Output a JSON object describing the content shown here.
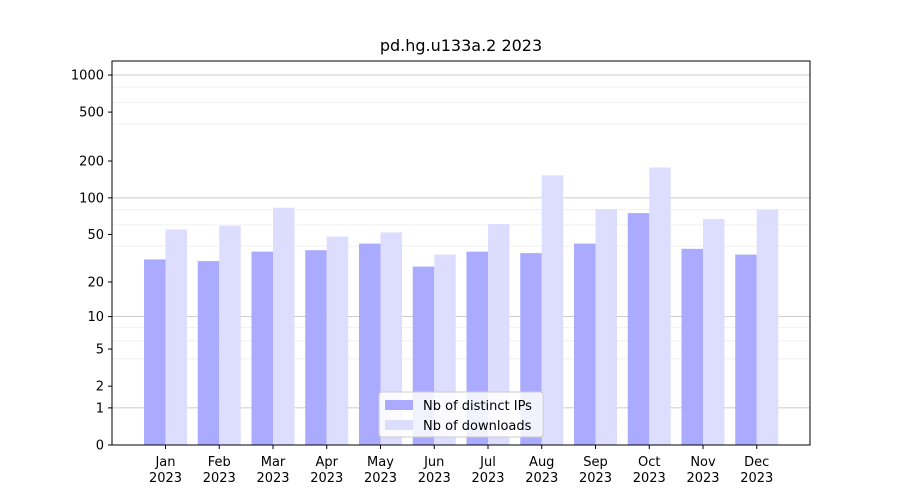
{
  "chart_data": {
    "type": "bar",
    "title": "pd.hg.u133a.2 2023",
    "xlabel": "",
    "ylabel": "",
    "yscale": "log(1+y)",
    "ylim": [
      0,
      1300
    ],
    "yticks": [
      0,
      1,
      2,
      5,
      10,
      20,
      50,
      100,
      200,
      500,
      1000
    ],
    "ytick_labels": [
      "0",
      "1",
      "2",
      "5",
      "10",
      "20",
      "50",
      "100",
      "200",
      "500",
      "1000"
    ],
    "categories": [
      "Jan\n2023",
      "Feb\n2023",
      "Mar\n2023",
      "Apr\n2023",
      "May\n2023",
      "Jun\n2023",
      "Jul\n2023",
      "Aug\n2023",
      "Sep\n2023",
      "Oct\n2023",
      "Nov\n2023",
      "Dec\n2023"
    ],
    "series": [
      {
        "name": "Nb of distinct IPs",
        "color": "#aaaaff",
        "values": [
          31,
          30,
          36,
          37,
          42,
          27,
          36,
          35,
          42,
          75,
          38,
          34
        ]
      },
      {
        "name": "Nb of downloads",
        "color": "#ddddff",
        "values": [
          55,
          59,
          83,
          48,
          52,
          34,
          61,
          153,
          81,
          177,
          67,
          80
        ]
      }
    ],
    "grid": true,
    "legend_position": "bottom-center"
  }
}
